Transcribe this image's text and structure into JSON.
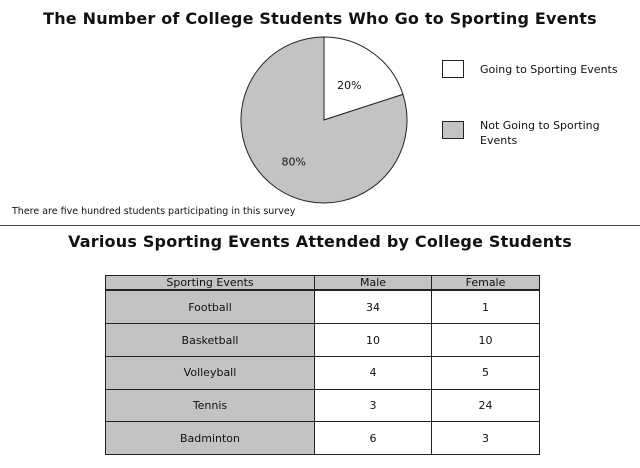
{
  "chart_data": [
    {
      "type": "pie",
      "title": "The Number of College Students Who Go to Sporting Events",
      "labels": [
        "Going to Sporting Events",
        "Not Going to Sporting Events"
      ],
      "values": [
        20,
        80
      ],
      "data_labels": [
        "20%",
        "80%"
      ],
      "colors": [
        "#ffffff",
        "#c3c3c3"
      ],
      "legend": "right",
      "note": "There are five hundred students participating in this survey"
    },
    {
      "type": "table",
      "title": "Various Sporting Events Attended by College Students",
      "columns": [
        "Sporting Events",
        "Male",
        "Female"
      ],
      "rows": [
        {
          "event": "Football",
          "male": "34",
          "female": "1"
        },
        {
          "event": "Basketball",
          "male": "10",
          "female": "10"
        },
        {
          "event": "Volleyball",
          "male": "4",
          "female": "5"
        },
        {
          "event": "Tennis",
          "male": "3",
          "female": "24"
        },
        {
          "event": "Badminton",
          "male": "6",
          "female": "3"
        }
      ],
      "colors": {
        "header": "#c3c3c3",
        "first_column": "#c3c3c3"
      }
    }
  ]
}
